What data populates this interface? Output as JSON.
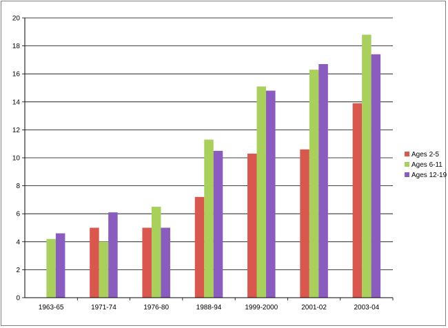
{
  "chart_data": {
    "type": "bar",
    "title": "",
    "xlabel": "",
    "ylabel": "",
    "categories": [
      "1963-65",
      "1971-74",
      "1976-80",
      "1988-94",
      "1999-2000",
      "2001-02",
      "2003-04"
    ],
    "series": [
      {
        "name": "Ages 2-5",
        "color": "#d9574c",
        "values": [
          null,
          5.0,
          5.0,
          7.2,
          10.3,
          10.6,
          13.9
        ]
      },
      {
        "name": "Ages 6-11",
        "color": "#a8d05a",
        "values": [
          4.2,
          4.0,
          6.5,
          11.3,
          15.1,
          16.3,
          18.8
        ]
      },
      {
        "name": "Ages 12-19",
        "color": "#8a5cc0",
        "values": [
          4.6,
          6.1,
          5.0,
          10.5,
          14.8,
          16.7,
          17.4
        ]
      }
    ],
    "ylim": [
      0,
      20
    ],
    "yticks": [
      0,
      2,
      4,
      6,
      8,
      10,
      12,
      14,
      16,
      18,
      20
    ],
    "grid": true,
    "legend_position": "right"
  }
}
